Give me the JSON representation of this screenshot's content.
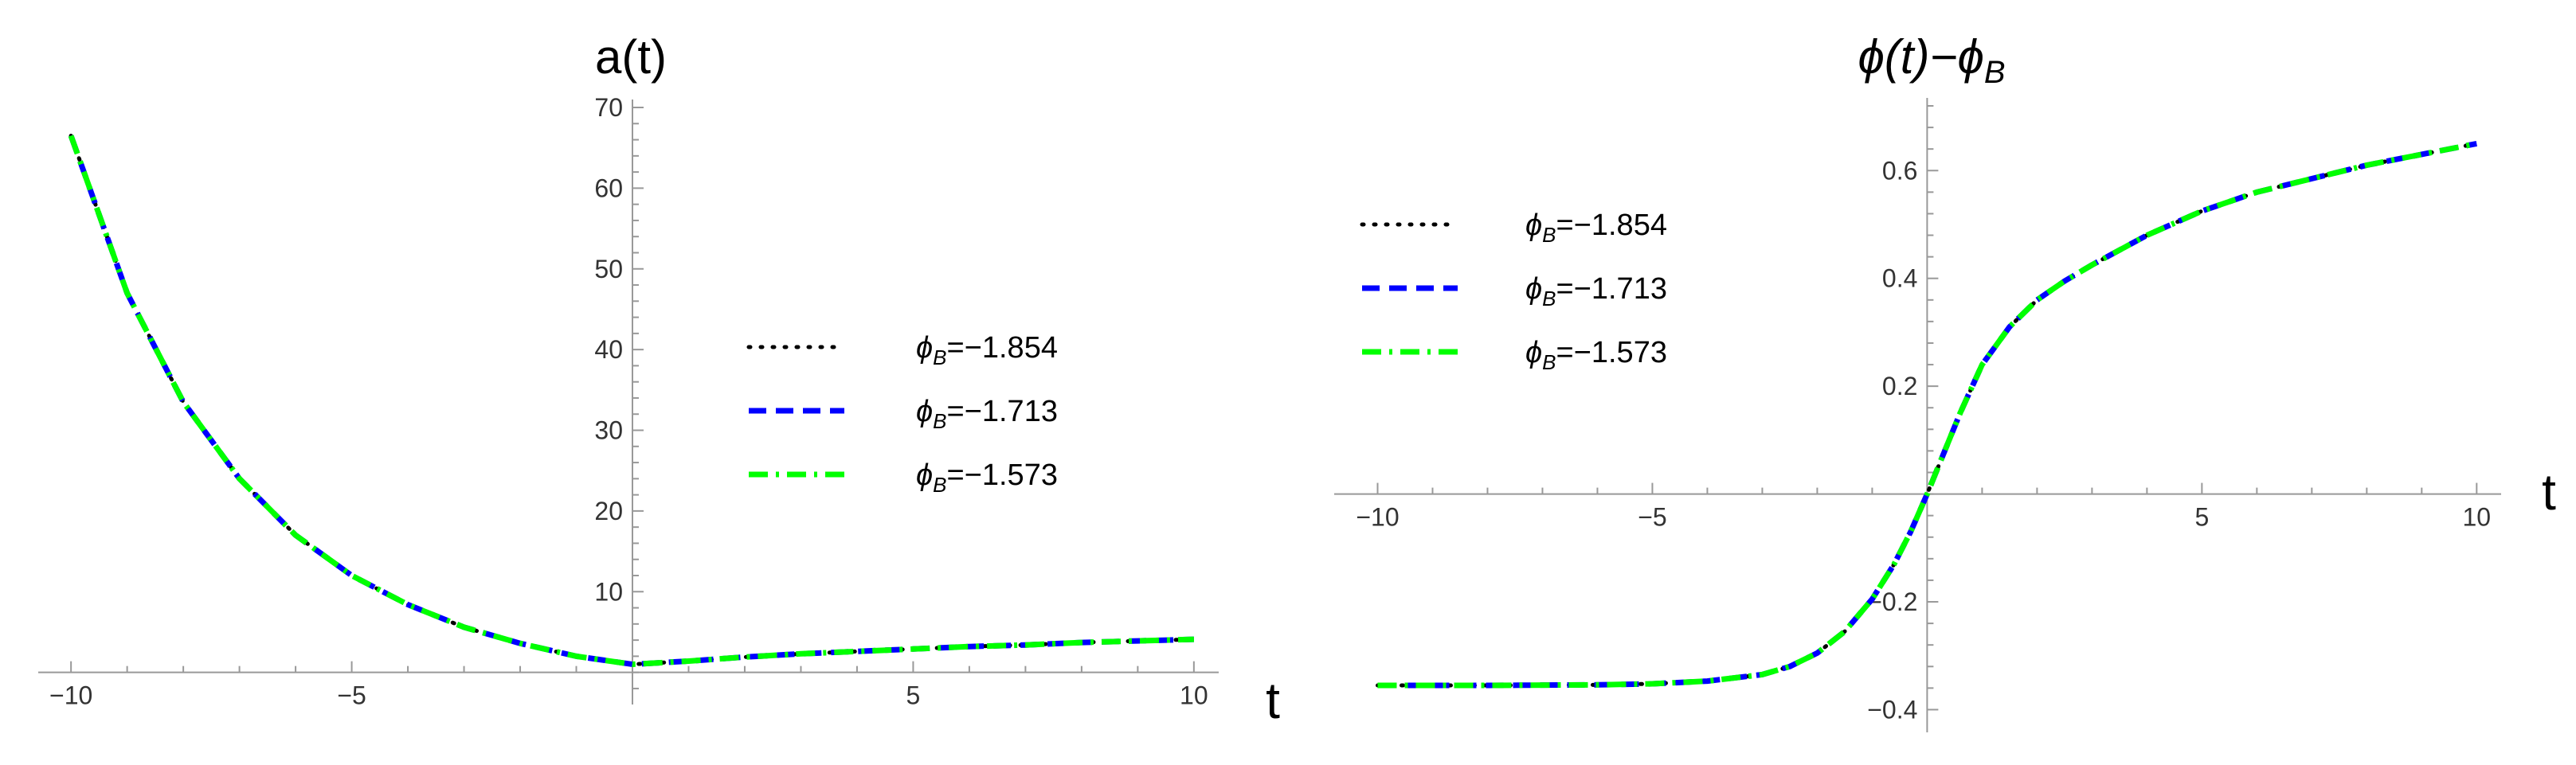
{
  "chart_data": [
    {
      "type": "line",
      "title": "a(t)",
      "xlabel": "t",
      "ylabel": "",
      "xlim": [
        -10.3,
        10.3
      ],
      "ylim": [
        -2.5,
        70
      ],
      "xticks": [
        "−10",
        "−5",
        "5",
        "10"
      ],
      "xtick_values": [
        -10,
        -5,
        5,
        10
      ],
      "yticks": [
        "10",
        "20",
        "30",
        "40",
        "50",
        "60",
        "70"
      ],
      "ytick_values": [
        10,
        20,
        30,
        40,
        50,
        60,
        70
      ],
      "x": [
        -10,
        -9,
        -8,
        -7,
        -6,
        -5,
        -4,
        -3,
        -2,
        -1,
        0,
        1,
        2,
        3,
        4,
        5,
        6,
        7,
        8,
        9,
        10
      ],
      "legend_position": "center-right",
      "series": [
        {
          "name": "ϕB=−1.854",
          "legend_label": {
            "symbol": "ϕ",
            "sub": "B",
            "value": "=−1.854"
          },
          "color": "#000000",
          "style": "dotted",
          "values": [
            66.5,
            47.0,
            33.5,
            24.0,
            17.0,
            12.0,
            8.4,
            5.6,
            3.6,
            2.0,
            1.0,
            1.4,
            1.9,
            2.3,
            2.6,
            2.9,
            3.2,
            3.4,
            3.7,
            3.9,
            4.1
          ]
        },
        {
          "name": "ϕB=−1.713",
          "legend_label": {
            "symbol": "ϕ",
            "sub": "B",
            "value": "=−1.713"
          },
          "color": "#0000ff",
          "style": "dashed",
          "values": [
            66.5,
            47.0,
            33.5,
            24.0,
            17.0,
            12.0,
            8.4,
            5.6,
            3.6,
            2.0,
            1.0,
            1.4,
            1.9,
            2.3,
            2.6,
            2.9,
            3.2,
            3.4,
            3.7,
            3.9,
            4.1
          ]
        },
        {
          "name": "ϕB=−1.573",
          "legend_label": {
            "symbol": "ϕ",
            "sub": "B",
            "value": "=−1.573"
          },
          "color": "#00ff00",
          "style": "dashdot",
          "values": [
            66.5,
            47.0,
            33.5,
            24.0,
            17.0,
            12.0,
            8.4,
            5.6,
            3.6,
            2.0,
            1.0,
            1.4,
            1.9,
            2.3,
            2.6,
            2.9,
            3.2,
            3.4,
            3.7,
            3.9,
            4.1
          ]
        }
      ]
    },
    {
      "type": "line",
      "title": "ϕ(t)−ϕB",
      "title_parts": {
        "main": "ϕ(t)−ϕ",
        "sub": "B"
      },
      "xlabel": "t",
      "ylabel": "",
      "xlim": [
        -10.5,
        10.3
      ],
      "ylim": [
        -0.42,
        0.72
      ],
      "xticks": [
        "−10",
        "−5",
        "5",
        "10"
      ],
      "xtick_values": [
        -10,
        -5,
        5,
        10
      ],
      "yticks": [
        "−0.4",
        "−0.2",
        "0.2",
        "0.4",
        "0.6"
      ],
      "ytick_values": [
        -0.4,
        -0.2,
        0.2,
        0.4,
        0.6
      ],
      "x": [
        -10,
        -8,
        -6,
        -5,
        -4,
        -3,
        -2.5,
        -2,
        -1.5,
        -1,
        -0.6,
        -0.3,
        0,
        0.3,
        0.6,
        1,
        1.5,
        2,
        2.5,
        3,
        4,
        5,
        6,
        8,
        10
      ],
      "legend_position": "top-left",
      "series": [
        {
          "name": "ϕB=−1.854",
          "legend_label": {
            "symbol": "ϕ",
            "sub": "B",
            "value": "=−1.854"
          },
          "color": "#000000",
          "style": "dotted",
          "values": [
            -0.355,
            -0.355,
            -0.354,
            -0.352,
            -0.347,
            -0.335,
            -0.32,
            -0.295,
            -0.255,
            -0.195,
            -0.13,
            -0.07,
            0.0,
            0.075,
            0.15,
            0.24,
            0.31,
            0.36,
            0.395,
            0.425,
            0.48,
            0.525,
            0.56,
            0.61,
            0.65
          ]
        },
        {
          "name": "ϕB=−1.713",
          "legend_label": {
            "symbol": "ϕ",
            "sub": "B",
            "value": "=−1.713"
          },
          "color": "#0000ff",
          "style": "dashed",
          "values": [
            -0.355,
            -0.355,
            -0.354,
            -0.352,
            -0.347,
            -0.335,
            -0.32,
            -0.295,
            -0.255,
            -0.195,
            -0.13,
            -0.07,
            0.0,
            0.075,
            0.15,
            0.24,
            0.31,
            0.36,
            0.395,
            0.425,
            0.48,
            0.525,
            0.56,
            0.61,
            0.65
          ]
        },
        {
          "name": "ϕB=−1.573",
          "legend_label": {
            "symbol": "ϕ",
            "sub": "B",
            "value": "=−1.573"
          },
          "color": "#00ff00",
          "style": "dashdot",
          "values": [
            -0.355,
            -0.355,
            -0.354,
            -0.352,
            -0.347,
            -0.335,
            -0.32,
            -0.295,
            -0.255,
            -0.195,
            -0.13,
            -0.07,
            0.0,
            0.075,
            0.15,
            0.24,
            0.31,
            0.36,
            0.395,
            0.425,
            0.48,
            0.525,
            0.56,
            0.61,
            0.65
          ]
        }
      ]
    }
  ]
}
